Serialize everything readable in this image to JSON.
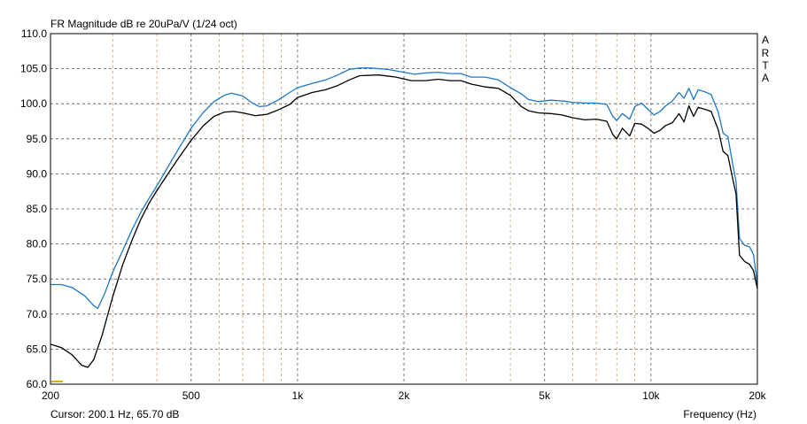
{
  "chart_data": {
    "type": "line",
    "title": "FR Magnitude dB re 20uPa/V (1/24 oct)",
    "xlabel": "Frequency (Hz)",
    "ylabel": "",
    "x_scale": "log",
    "xlim": [
      200,
      20000
    ],
    "ylim": [
      60,
      110
    ],
    "grid": true,
    "y_ticks": [
      60,
      65,
      70,
      75,
      80,
      85,
      90,
      95,
      100,
      105,
      110
    ],
    "y_tick_labels": [
      "60.0",
      "65.0",
      "70.0",
      "75.0",
      "80.0",
      "85.0",
      "90.0",
      "95.0",
      "100.0",
      "105.0",
      "110.0"
    ],
    "x_major_ticks": [
      200,
      500,
      1000,
      2000,
      5000,
      10000,
      20000
    ],
    "x_tick_labels": [
      "200",
      "500",
      "1k",
      "2k",
      "5k",
      "10k",
      "20k"
    ],
    "x_minor_grid": [
      300,
      400,
      600,
      700,
      800,
      900,
      3000,
      4000,
      6000,
      7000,
      8000,
      9000
    ],
    "series": [
      {
        "color": "#1a78c8",
        "points": [
          [
            200,
            74.2
          ],
          [
            215,
            74.2
          ],
          [
            230,
            73.8
          ],
          [
            250,
            72.6
          ],
          [
            265,
            71.2
          ],
          [
            272,
            70.8
          ],
          [
            285,
            73
          ],
          [
            300,
            76
          ],
          [
            320,
            79
          ],
          [
            340,
            82
          ],
          [
            360,
            84.5
          ],
          [
            380,
            86.5
          ],
          [
            400,
            88.3
          ],
          [
            430,
            91
          ],
          [
            460,
            93.5
          ],
          [
            500,
            96.5
          ],
          [
            540,
            98.7
          ],
          [
            580,
            100.3
          ],
          [
            620,
            101.2
          ],
          [
            650,
            101.5
          ],
          [
            700,
            101.1
          ],
          [
            740,
            100.2
          ],
          [
            780,
            99.6
          ],
          [
            820,
            99.7
          ],
          [
            880,
            100.5
          ],
          [
            950,
            101.6
          ],
          [
            1000,
            102.3
          ],
          [
            1100,
            102.9
          ],
          [
            1200,
            103.4
          ],
          [
            1300,
            104.1
          ],
          [
            1400,
            104.9
          ],
          [
            1500,
            105.1
          ],
          [
            1600,
            105.1
          ],
          [
            1800,
            104.9
          ],
          [
            2000,
            104.5
          ],
          [
            2150,
            104.2
          ],
          [
            2300,
            104.4
          ],
          [
            2500,
            104.5
          ],
          [
            2700,
            104.3
          ],
          [
            2900,
            104.3
          ],
          [
            3100,
            103.8
          ],
          [
            3400,
            103.8
          ],
          [
            3700,
            103.4
          ],
          [
            4000,
            102.3
          ],
          [
            4300,
            101.4
          ],
          [
            4500,
            100.6
          ],
          [
            4800,
            100.3
          ],
          [
            5200,
            100.5
          ],
          [
            5600,
            100.4
          ],
          [
            6000,
            100.2
          ],
          [
            6500,
            100.1
          ],
          [
            7000,
            100.1
          ],
          [
            7500,
            99.9
          ],
          [
            7800,
            98.2
          ],
          [
            8000,
            97.6
          ],
          [
            8300,
            98.6
          ],
          [
            8700,
            97.8
          ],
          [
            9000,
            99.6
          ],
          [
            9400,
            100.1
          ],
          [
            9800,
            99.2
          ],
          [
            10200,
            98.4
          ],
          [
            10600,
            98.9
          ],
          [
            11000,
            99.7
          ],
          [
            11500,
            100.4
          ],
          [
            12000,
            101.6
          ],
          [
            12400,
            100.8
          ],
          [
            12800,
            102.2
          ],
          [
            13200,
            100.6
          ],
          [
            13600,
            102.0
          ],
          [
            14200,
            101.7
          ],
          [
            14800,
            101.3
          ],
          [
            15500,
            98.8
          ],
          [
            16000,
            95.8
          ],
          [
            16500,
            95.3
          ],
          [
            17000,
            91.6
          ],
          [
            17400,
            88.9
          ],
          [
            17800,
            80.8
          ],
          [
            18400,
            79.8
          ],
          [
            19000,
            79.6
          ],
          [
            19500,
            78.5
          ],
          [
            20000,
            74.2
          ]
        ]
      },
      {
        "color": "#000000",
        "points": [
          [
            200,
            65.7
          ],
          [
            215,
            65.2
          ],
          [
            230,
            64.2
          ],
          [
            245,
            62.7
          ],
          [
            255,
            62.4
          ],
          [
            265,
            63.5
          ],
          [
            280,
            67
          ],
          [
            300,
            72.5
          ],
          [
            320,
            77
          ],
          [
            340,
            80.5
          ],
          [
            360,
            83.5
          ],
          [
            380,
            85.8
          ],
          [
            400,
            87.6
          ],
          [
            430,
            90
          ],
          [
            460,
            92.2
          ],
          [
            500,
            94.8
          ],
          [
            540,
            96.8
          ],
          [
            580,
            98.2
          ],
          [
            620,
            98.8
          ],
          [
            660,
            98.9
          ],
          [
            700,
            98.7
          ],
          [
            760,
            98.3
          ],
          [
            820,
            98.5
          ],
          [
            880,
            99.1
          ],
          [
            950,
            99.9
          ],
          [
            1000,
            100.9
          ],
          [
            1100,
            101.6
          ],
          [
            1200,
            102.0
          ],
          [
            1300,
            102.6
          ],
          [
            1400,
            103.4
          ],
          [
            1500,
            104.0
          ],
          [
            1700,
            104.1
          ],
          [
            1900,
            103.8
          ],
          [
            2100,
            103.3
          ],
          [
            2300,
            103.3
          ],
          [
            2500,
            103.5
          ],
          [
            2700,
            103.3
          ],
          [
            2900,
            103.3
          ],
          [
            3100,
            102.8
          ],
          [
            3400,
            102.4
          ],
          [
            3700,
            102.2
          ],
          [
            4000,
            101.2
          ],
          [
            4300,
            99.6
          ],
          [
            4500,
            99.0
          ],
          [
            4800,
            98.7
          ],
          [
            5200,
            98.6
          ],
          [
            5600,
            98.4
          ],
          [
            6000,
            98.0
          ],
          [
            6500,
            97.7
          ],
          [
            7000,
            97.8
          ],
          [
            7500,
            97.5
          ],
          [
            7800,
            95.6
          ],
          [
            8000,
            95.0
          ],
          [
            8300,
            96.5
          ],
          [
            8700,
            95.4
          ],
          [
            9000,
            97.2
          ],
          [
            9400,
            97.1
          ],
          [
            9800,
            96.5
          ],
          [
            10200,
            95.8
          ],
          [
            10600,
            96.2
          ],
          [
            11000,
            96.9
          ],
          [
            11500,
            97.3
          ],
          [
            12000,
            98.6
          ],
          [
            12400,
            97.4
          ],
          [
            12800,
            99.7
          ],
          [
            13200,
            98.2
          ],
          [
            13600,
            99.5
          ],
          [
            14200,
            99.2
          ],
          [
            14800,
            98.9
          ],
          [
            15500,
            96.3
          ],
          [
            16000,
            93.2
          ],
          [
            16500,
            92.6
          ],
          [
            17000,
            89.5
          ],
          [
            17400,
            87.1
          ],
          [
            17800,
            78.4
          ],
          [
            18400,
            77.5
          ],
          [
            19000,
            77.1
          ],
          [
            19500,
            76.2
          ],
          [
            20000,
            73.6
          ]
        ]
      }
    ],
    "watermark": [
      "A",
      "R",
      "T",
      "A"
    ],
    "cursor_text": "Cursor: 200.1 Hz, 65.70 dB",
    "cursor_marker_color": "#d4b000"
  }
}
